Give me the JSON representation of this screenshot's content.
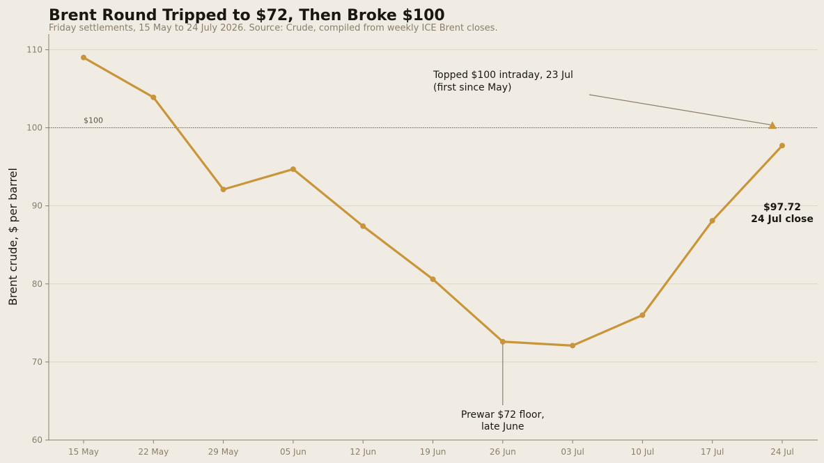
{
  "chart_data": {
    "type": "line",
    "title": "Brent Round Tripped to $72, Then Broke $100",
    "subtitle": "Friday settlements, 15 May to 24 July 2026. Source: Crude, compiled from weekly ICE Brent closes.",
    "ylabel": "Brent crude, $ per barrel",
    "xlabel": "",
    "ylim": [
      60,
      112
    ],
    "yticks": [
      60,
      70,
      80,
      90,
      100,
      110
    ],
    "grid": true,
    "categories": [
      "15 May",
      "22 May",
      "29 May",
      "05 Jun",
      "12 Jun",
      "19 Jun",
      "26 Jun",
      "03 Jul",
      "10 Jul",
      "17 Jul",
      "24 Jul"
    ],
    "values": [
      109.0,
      103.9,
      92.1,
      94.7,
      87.4,
      80.6,
      72.6,
      72.1,
      76.0,
      88.1,
      97.72
    ],
    "reference_line": {
      "value": 100,
      "label": "$100"
    },
    "intraday_marker": {
      "x_index": 9.86,
      "value": 100.3
    },
    "annotations": [
      {
        "lines": [
          "Topped $100 intraday, 23 Jul",
          "(first since May)"
        ]
      },
      {
        "lines": [
          "Prewar $72 floor,",
          "late June"
        ]
      }
    ],
    "end_label": {
      "lines": [
        "$97.72",
        "24 Jul close"
      ]
    },
    "colors": {
      "line": "#c8953a",
      "grid": "#ddd6bf",
      "axis": "#8a7e6a",
      "background": "#f1ece3"
    }
  }
}
